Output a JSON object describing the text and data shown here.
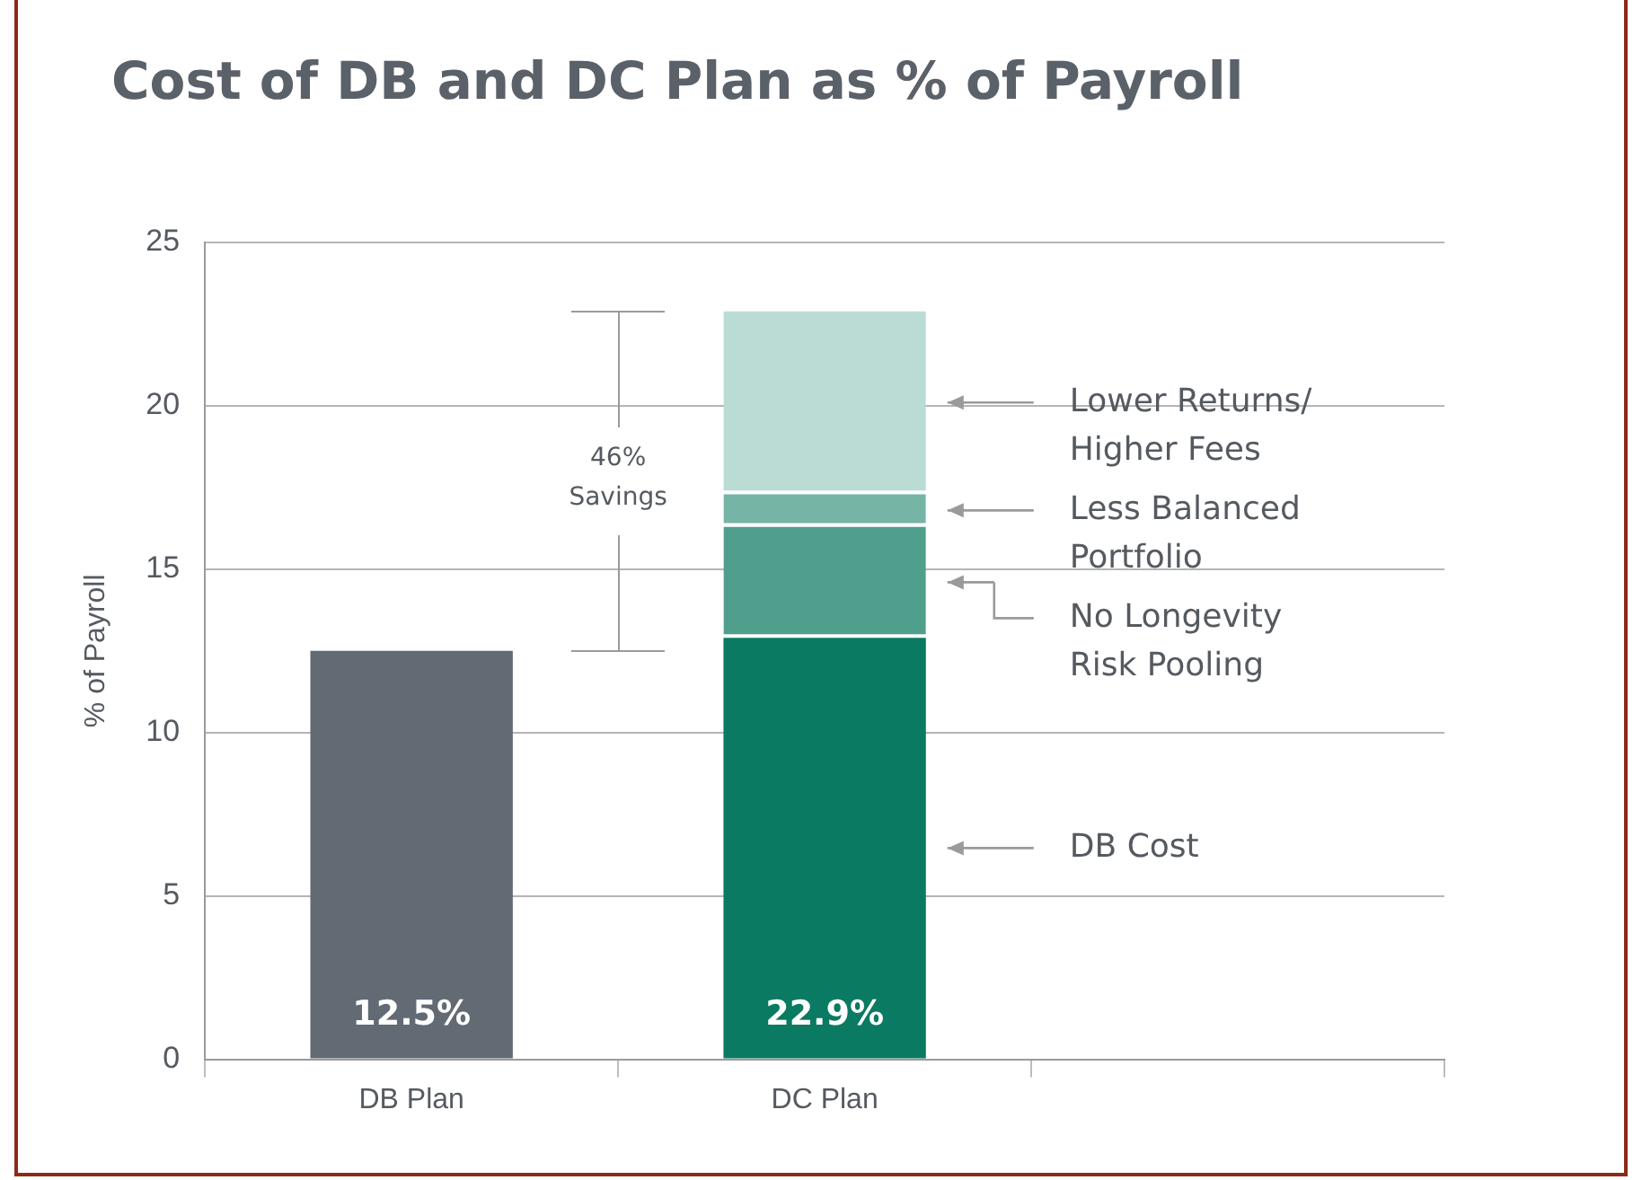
{
  "chart_data": {
    "type": "bar",
    "title": "Cost of DB and DC Plan as % of Payroll",
    "ylabel": "% of Payroll",
    "categories": [
      "DB Plan",
      "DC Plan",
      null
    ],
    "stacked": true,
    "series": [
      {
        "name": "DB Cost",
        "colors": [
          "#626a74",
          "#0b7a62",
          null
        ],
        "values": [
          12.5,
          12.9,
          null
        ]
      },
      {
        "name": "No Longevity Risk Pooling",
        "color": "#4f9f8c",
        "values": [
          null,
          3.4,
          null
        ]
      },
      {
        "name": "Less Balanced Portfolio",
        "color": "#76b5a6",
        "values": [
          null,
          1.0,
          null
        ]
      },
      {
        "name": "Lower Returns/ Higher Fees",
        "color": "#badcd4",
        "values": [
          null,
          5.6,
          null
        ]
      }
    ],
    "totals": [
      "12.5%",
      "22.9%",
      null
    ],
    "annotations": [
      "46% Savings"
    ],
    "ylim": [
      0,
      25
    ],
    "yticks": [
      0,
      5,
      10,
      15,
      20,
      25
    ],
    "grid": "y",
    "legend": false
  }
}
